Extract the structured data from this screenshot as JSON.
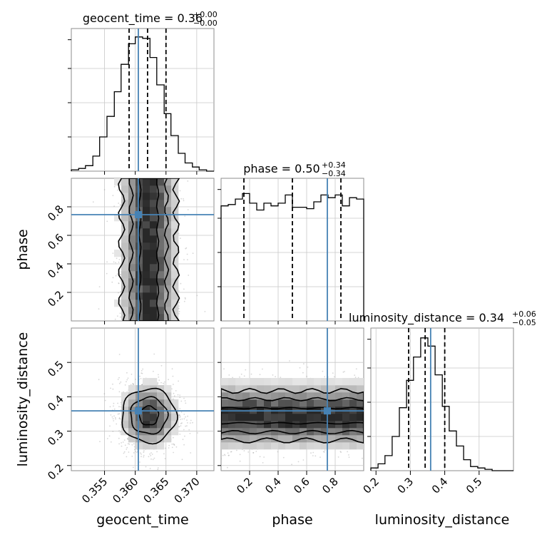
{
  "chart_data": {
    "type": "corner",
    "parameters": [
      "geocent_time",
      "phase",
      "luminosity_distance"
    ],
    "titles": [
      {
        "param": "geocent_time",
        "median": "0.36",
        "plus": "+0.00",
        "minus": "−0.00"
      },
      {
        "param": "phase",
        "median": "0.50",
        "plus": "+0.34",
        "minus": "−0.34"
      },
      {
        "param": "luminosity_distance",
        "median": "0.34",
        "plus": "+0.06",
        "minus": "−0.05"
      }
    ],
    "axis_labels": {
      "x": [
        "geocent_time",
        "phase",
        "luminosity_distance"
      ],
      "y": [
        "phase",
        "luminosity_distance"
      ]
    },
    "ranges": {
      "geocent_time": [
        0.3496,
        0.3728
      ],
      "phase": [
        0.0,
        1.0
      ],
      "luminosity_distance": [
        0.185,
        0.6
      ]
    },
    "ticks": {
      "geocent_time": [
        0.355,
        0.36,
        0.365,
        0.37
      ],
      "geocent_time_labels": [
        "0.355",
        "0.360",
        "0.365",
        "0.370"
      ],
      "phase": [
        0.2,
        0.4,
        0.6,
        0.8
      ],
      "phase_labels": [
        "0.2",
        "0.4",
        "0.6",
        "0.8"
      ],
      "luminosity_distance": [
        0.2,
        0.3,
        0.4,
        0.5
      ],
      "luminosity_distance_labels": [
        "0.2",
        "0.3",
        "0.4",
        "0.5"
      ]
    },
    "injection": {
      "geocent_time": 0.3605,
      "phase": 0.745,
      "luminosity_distance": 0.359
    },
    "quantiles": {
      "geocent_time": [
        0.359,
        0.362,
        0.365
      ],
      "phase": [
        0.16,
        0.5,
        0.84
      ],
      "luminosity_distance": [
        0.295,
        0.343,
        0.4
      ]
    },
    "histograms": {
      "geocent_time": {
        "bins": [
          0.3496,
          0.3508,
          0.3519,
          0.3531,
          0.3542,
          0.3554,
          0.3566,
          0.3577,
          0.3589,
          0.36,
          0.3612,
          0.3624,
          0.3635,
          0.3647,
          0.3658,
          0.367,
          0.3681,
          0.3693,
          0.3704,
          0.3716,
          0.3728
        ],
        "counts": [
          0.01,
          0.02,
          0.04,
          0.11,
          0.25,
          0.4,
          0.58,
          0.78,
          0.93,
          0.98,
          0.97,
          0.83,
          0.63,
          0.42,
          0.26,
          0.13,
          0.06,
          0.03,
          0.01,
          0.0
        ]
      },
      "phase": {
        "bins": [
          0.0,
          0.05,
          0.1,
          0.15,
          0.2,
          0.25,
          0.3,
          0.35,
          0.4,
          0.45,
          0.5,
          0.55,
          0.6,
          0.65,
          0.7,
          0.75,
          0.8,
          0.85,
          0.9,
          0.95,
          1.0
        ],
        "counts": [
          0.84,
          0.85,
          0.89,
          0.93,
          0.86,
          0.81,
          0.86,
          0.84,
          0.86,
          0.92,
          0.83,
          0.83,
          0.82,
          0.87,
          0.92,
          0.9,
          0.92,
          0.84,
          0.9,
          0.89
        ]
      },
      "luminosity_distance": {
        "bins": [
          0.185,
          0.206,
          0.226,
          0.247,
          0.268,
          0.289,
          0.309,
          0.33,
          0.351,
          0.372,
          0.393,
          0.413,
          0.434,
          0.455,
          0.475,
          0.496,
          0.517,
          0.538,
          0.558,
          0.579,
          0.6
        ],
        "counts": [
          0.02,
          0.05,
          0.11,
          0.25,
          0.46,
          0.66,
          0.83,
          0.97,
          0.91,
          0.7,
          0.47,
          0.29,
          0.18,
          0.08,
          0.03,
          0.02,
          0.01,
          0.0,
          0.0,
          0.0
        ]
      }
    },
    "contour_levels": [
      0.39,
      0.86,
      0.99
    ],
    "grid": true,
    "colors": {
      "injection": "#4682b4",
      "histogram": "#000000",
      "contours": "#000000",
      "samples": "#8c8c8c",
      "grid": "#c8c8c8",
      "frame": "#8c8c8c"
    }
  }
}
